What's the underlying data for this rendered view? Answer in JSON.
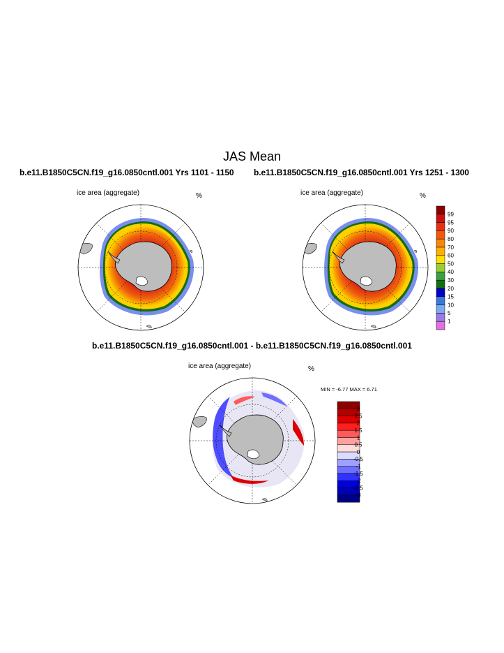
{
  "title": "JAS Mean",
  "panels": [
    {
      "case_title": "b.e11.B1850C5CN.f19_g16.0850cntl.001  Yrs 1101 - 1150",
      "variable": "ice area  (aggregate)",
      "units": "%"
    },
    {
      "case_title": "b.e11.B1850C5CN.f19_g16.0850cntl.001  Yrs 1251 - 1300",
      "variable": "ice area  (aggregate)",
      "units": "%"
    }
  ],
  "difference_panel": {
    "title": "b.e11.B1850C5CN.f19_g16.0850cntl.001 - b.e11.B1850C5CN.f19_g16.0850cntl.001",
    "variable": "ice area  (aggregate)",
    "units": "%",
    "min_max_text": "MIN =  -6.77 MAX =   6.71"
  },
  "colorbar_main": {
    "labels": [
      "99",
      "95",
      "90",
      "80",
      "70",
      "60",
      "50",
      "40",
      "30",
      "20",
      "15",
      "10",
      "5",
      "1"
    ],
    "colors": [
      "#8b0000",
      "#c81010",
      "#e83010",
      "#f05a0a",
      "#f8860a",
      "#ffb000",
      "#ffe000",
      "#9acd32",
      "#3ca03c",
      "#126e12",
      "#0000c8",
      "#3c78dc",
      "#7aaaf0",
      "#9b7ae6",
      "#e070e0"
    ]
  },
  "colorbar_diff": {
    "labels": [
      "3",
      "2.5",
      "2",
      "1.5",
      "1",
      "0.5",
      "0",
      "-0.5",
      "-1",
      "-1.5",
      "-2",
      "-2.5",
      "-3"
    ],
    "colors": [
      "#8b0000",
      "#b40000",
      "#dc0000",
      "#ff1e1e",
      "#ff5a5a",
      "#ffa0a0",
      "#ffdcdc",
      "#dcdcff",
      "#a0a0ff",
      "#6e6eff",
      "#3232ff",
      "#0000dc",
      "#0000b4",
      "#000082"
    ]
  }
}
